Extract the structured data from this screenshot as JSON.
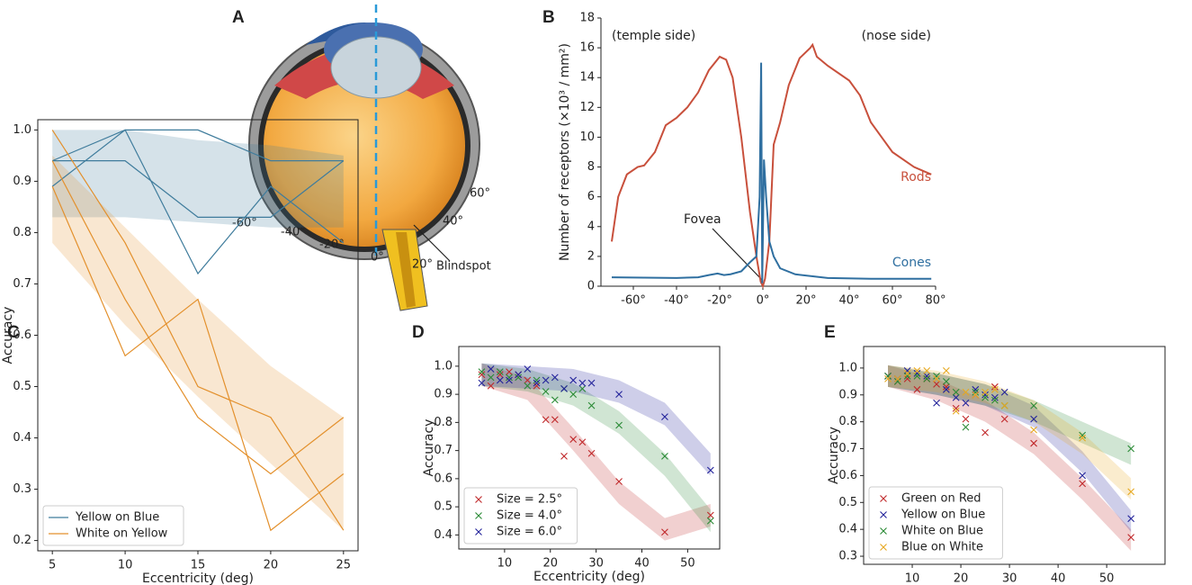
{
  "illustration": {
    "label": "A",
    "angles": [
      "-60°",
      "-40°",
      "-20°",
      "0°",
      "20°",
      "40°",
      "60°"
    ],
    "annotation": "Blindspot"
  },
  "chart_data": [
    {
      "type": "line",
      "label": "B",
      "ylabel": "Number of receptors (×10³ / mm²)",
      "annotations": [
        "(temple side)",
        "(nose side)",
        "Fovea"
      ],
      "series": [
        {
          "name": "Rods",
          "color": "#c8503c",
          "x": [
            -70,
            -67,
            -63,
            -58,
            -55,
            -50,
            -45,
            -40,
            -35,
            -30,
            -25,
            -20,
            -17,
            -14,
            -10,
            -6,
            -3,
            -1,
            0,
            1,
            3,
            5,
            8,
            12,
            17,
            22,
            23,
            25,
            30,
            40,
            45,
            50,
            55,
            60,
            70,
            78
          ],
          "values": [
            3,
            6,
            7.5,
            8,
            8.1,
            9,
            10.8,
            11.3,
            12,
            13,
            14.5,
            15.4,
            15.2,
            14,
            10,
            5,
            2,
            0.3,
            0,
            0.5,
            3,
            9.5,
            11,
            13.5,
            15.3,
            16,
            16.2,
            15.4,
            14.8,
            13.8,
            12.8,
            11,
            10,
            9,
            8,
            7.5
          ]
        },
        {
          "name": "Cones",
          "color": "#2f6fa0",
          "x": [
            -70,
            -40,
            -30,
            -25,
            -21,
            -18,
            -15,
            -10,
            -6,
            -3,
            -1.5,
            -0.8,
            -0.3,
            0.5,
            1.5,
            3,
            5,
            8,
            15,
            30,
            50,
            78
          ],
          "values": [
            0.6,
            0.55,
            0.6,
            0.75,
            0.85,
            0.75,
            0.8,
            1.0,
            1.6,
            2,
            6,
            15,
            0.2,
            8.5,
            6,
            3,
            2,
            1.2,
            0.8,
            0.55,
            0.5,
            0.5
          ]
        }
      ],
      "xlim": [
        -75,
        80
      ],
      "ylim": [
        0,
        18
      ],
      "xticks": [
        {
          "value": -60,
          "label": "-60°"
        },
        {
          "value": -40,
          "label": "-40°"
        },
        {
          "value": -20,
          "label": "-20°"
        },
        {
          "value": 0,
          "label": "0°"
        },
        {
          "value": 20,
          "label": "20°"
        },
        {
          "value": 40,
          "label": "40°"
        },
        {
          "value": 60,
          "label": "60°"
        },
        {
          "value": 80,
          "label": "80°"
        }
      ],
      "yticks": [
        0,
        2,
        4,
        6,
        8,
        10,
        12,
        14,
        16,
        18
      ]
    },
    {
      "type": "line",
      "label": "C",
      "xlabel": "Eccentricity (deg)",
      "ylabel": "Accuracy",
      "legend": "lower left",
      "series": [
        {
          "name": "Yellow on Blue",
          "color": "#3f7c9c",
          "x": [
            5,
            10,
            15,
            20,
            25
          ],
          "lines": [
            [
              0.94,
              0.94,
              0.83,
              0.83,
              0.94
            ],
            [
              0.89,
              1.0,
              1.0,
              0.94,
              0.94
            ],
            [
              0.94,
              1.0,
              0.72,
              0.89,
              0.78
            ]
          ],
          "band_lower": [
            0.83,
            0.83,
            0.82,
            0.81,
            0.81
          ],
          "band_upper": [
            1.0,
            1.0,
            0.98,
            0.97,
            0.95
          ]
        },
        {
          "name": "White on Yellow",
          "color": "#e3902c",
          "x": [
            5,
            10,
            15,
            20,
            25
          ],
          "lines": [
            [
              1.0,
              0.78,
              0.5,
              0.44,
              0.22
            ],
            [
              0.89,
              0.56,
              0.67,
              0.22,
              0.33
            ],
            [
              0.94,
              0.67,
              0.44,
              0.33,
              0.44
            ]
          ],
          "band_lower": [
            0.78,
            0.62,
            0.48,
            0.35,
            0.22
          ],
          "band_upper": [
            0.95,
            0.81,
            0.67,
            0.54,
            0.44
          ]
        }
      ],
      "xlim": [
        4,
        26
      ],
      "ylim": [
        0.18,
        1.02
      ],
      "xticks": [
        5,
        10,
        15,
        20,
        25
      ],
      "yticks": [
        0.2,
        0.3,
        0.4,
        0.5,
        0.6,
        0.7,
        0.8,
        0.9,
        {
          "value": 1,
          "label": "1.0"
        }
      ]
    },
    {
      "type": "scatter",
      "label": "D",
      "xlabel": "Eccentricity (deg)",
      "ylabel": "Accuracy",
      "legend": "lower left",
      "series": [
        {
          "name": "Size = 2.5°",
          "color": "#c0282a",
          "x": [
            5,
            7,
            9,
            11,
            13,
            15,
            17,
            19,
            21,
            23,
            25,
            27,
            29,
            35,
            45,
            55
          ],
          "values": [
            0.97,
            0.93,
            0.97,
            0.98,
            0.97,
            0.95,
            0.93,
            0.81,
            0.81,
            0.68,
            0.74,
            0.73,
            0.69,
            0.59,
            0.41,
            0.47
          ],
          "band_x": [
            5,
            15,
            25,
            35,
            45,
            55
          ],
          "band_lower": [
            0.93,
            0.88,
            0.7,
            0.51,
            0.38,
            0.43
          ],
          "band_upper": [
            1.01,
            0.96,
            0.78,
            0.59,
            0.46,
            0.51
          ]
        },
        {
          "name": "Size = 4.0°",
          "color": "#2a8a35",
          "x": [
            5,
            7,
            9,
            11,
            13,
            15,
            17,
            19,
            21,
            23,
            25,
            27,
            29,
            35,
            45,
            55
          ],
          "values": [
            0.98,
            0.96,
            0.98,
            0.96,
            0.96,
            0.93,
            0.95,
            0.91,
            0.88,
            0.92,
            0.9,
            0.92,
            0.86,
            0.79,
            0.68,
            0.45
          ],
          "band_x": [
            5,
            15,
            25,
            35,
            45,
            55
          ],
          "band_lower": [
            0.93,
            0.91,
            0.86,
            0.76,
            0.61,
            0.41
          ],
          "band_upper": [
            1.01,
            0.99,
            0.94,
            0.84,
            0.69,
            0.49
          ]
        },
        {
          "name": "Size = 6.0°",
          "color": "#22229a",
          "x": [
            5,
            7,
            9,
            11,
            13,
            15,
            17,
            19,
            21,
            23,
            25,
            27,
            29,
            35,
            45,
            55
          ],
          "values": [
            0.94,
            0.99,
            0.95,
            0.95,
            0.97,
            0.99,
            0.94,
            0.95,
            0.96,
            0.92,
            0.95,
            0.94,
            0.94,
            0.9,
            0.82,
            0.63
          ],
          "band_x": [
            5,
            15,
            25,
            35,
            45,
            55
          ],
          "band_lower": [
            0.93,
            0.92,
            0.91,
            0.87,
            0.79,
            0.61
          ],
          "band_upper": [
            1.01,
            1.0,
            0.99,
            0.95,
            0.87,
            0.69
          ]
        }
      ],
      "xlim": [
        0,
        57
      ],
      "ylim": [
        0.35,
        1.07
      ],
      "xticks": [
        10,
        20,
        30,
        40,
        50
      ],
      "yticks": [
        0.4,
        0.5,
        0.6,
        0.7,
        0.8,
        0.9,
        {
          "value": 1,
          "label": "1.0"
        }
      ]
    },
    {
      "type": "scatter",
      "label": "E",
      "xlabel": "Eccentricity (deg)",
      "ylabel": "Accuracy",
      "legend": "lower left",
      "series": [
        {
          "name": "Green on Red",
          "color": "#c0282a",
          "x": [
            5,
            7,
            9,
            11,
            13,
            15,
            17,
            19,
            21,
            23,
            25,
            27,
            29,
            35,
            45,
            55
          ],
          "values": [
            0.97,
            0.95,
            0.96,
            0.92,
            0.96,
            0.94,
            0.93,
            0.85,
            0.81,
            0.9,
            0.76,
            0.93,
            0.81,
            0.72,
            0.57,
            0.37
          ],
          "band_x": [
            5,
            15,
            25,
            35,
            45,
            55
          ],
          "band_lower": [
            0.93,
            0.88,
            0.8,
            0.68,
            0.51,
            0.32
          ],
          "band_upper": [
            1.01,
            0.96,
            0.88,
            0.76,
            0.59,
            0.4
          ]
        },
        {
          "name": "Yellow on Blue",
          "color": "#22229a",
          "x": [
            5,
            7,
            9,
            11,
            13,
            15,
            17,
            19,
            21,
            23,
            25,
            27,
            29,
            35,
            45,
            55
          ],
          "values": [
            0.97,
            0.96,
            0.99,
            0.98,
            0.97,
            0.87,
            0.92,
            0.89,
            0.87,
            0.92,
            0.9,
            0.89,
            0.91,
            0.81,
            0.6,
            0.44
          ],
          "band_x": [
            5,
            15,
            25,
            35,
            45,
            55
          ],
          "band_lower": [
            0.93,
            0.9,
            0.86,
            0.78,
            0.61,
            0.39
          ],
          "band_upper": [
            1.01,
            0.98,
            0.94,
            0.86,
            0.69,
            0.47
          ]
        },
        {
          "name": "White on Blue",
          "color": "#2a8a35",
          "x": [
            5,
            7,
            9,
            11,
            13,
            15,
            17,
            19,
            21,
            23,
            25,
            27,
            29,
            35,
            45,
            55
          ],
          "values": [
            0.97,
            0.95,
            0.97,
            0.97,
            0.96,
            0.97,
            0.95,
            0.91,
            0.78,
            0.91,
            0.89,
            0.88,
            0.86,
            0.86,
            0.75,
            0.7
          ],
          "band_x": [
            5,
            15,
            25,
            35,
            45,
            55
          ],
          "band_lower": [
            0.93,
            0.9,
            0.86,
            0.8,
            0.72,
            0.64
          ],
          "band_upper": [
            1.01,
            0.98,
            0.94,
            0.88,
            0.8,
            0.72
          ]
        },
        {
          "name": "Blue on White",
          "color": "#e6a820",
          "x": [
            5,
            7,
            9,
            11,
            13,
            15,
            17,
            19,
            21,
            23,
            25,
            27,
            29,
            35,
            45,
            55
          ],
          "values": [
            0.96,
            0.96,
            0.98,
            0.99,
            0.99,
            0.96,
            0.99,
            0.84,
            0.91,
            0.9,
            0.91,
            0.92,
            0.86,
            0.77,
            0.74,
            0.54
          ],
          "band_x": [
            5,
            15,
            25,
            35,
            45,
            55
          ],
          "band_lower": [
            0.93,
            0.91,
            0.87,
            0.8,
            0.68,
            0.51
          ],
          "band_upper": [
            1.01,
            0.99,
            0.95,
            0.88,
            0.76,
            0.59
          ]
        }
      ],
      "xlim": [
        0,
        62
      ],
      "ylim": [
        0.27,
        1.08
      ],
      "xticks": [
        10,
        20,
        30,
        40,
        50
      ],
      "yticks": [
        0.3,
        0.4,
        0.5,
        0.6,
        0.7,
        0.8,
        0.9,
        {
          "value": 1,
          "label": "1.0"
        }
      ]
    }
  ]
}
